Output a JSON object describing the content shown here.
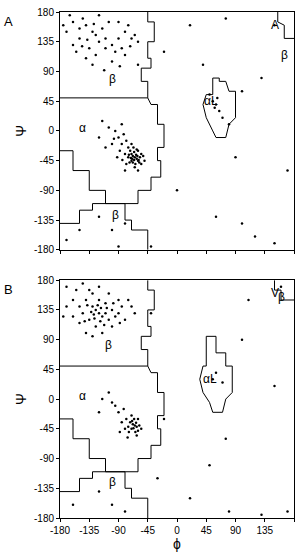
{
  "chart_data": [
    {
      "type": "scatter",
      "panel_label": "A",
      "ylabel": "Ψ",
      "color": "#000000",
      "marker": "circle",
      "line_style": "solid",
      "tick_labels": "y",
      "xlim": [
        -180,
        180
      ],
      "ylim": [
        -180,
        180
      ],
      "xticks": [
        -180,
        -135,
        -90,
        -45,
        0,
        45,
        90,
        135,
        180
      ],
      "yticks": [
        -180,
        -135,
        -90,
        -45,
        0,
        45,
        90,
        135,
        180
      ],
      "annotations": [
        {
          "text": "A",
          "x": 150,
          "y": 160
        },
        {
          "text": "β",
          "x": -100,
          "y": 78
        },
        {
          "text": "α",
          "x": -145,
          "y": 5
        },
        {
          "text": "αL",
          "x": 52,
          "y": 45
        },
        {
          "text": "β",
          "x": -95,
          "y": -128
        },
        {
          "text": "β",
          "x": 165,
          "y": 115
        }
      ],
      "points": [
        [
          -65,
          -40
        ],
        [
          -60,
          -45
        ],
        [
          -70,
          -35
        ],
        [
          -62,
          -42
        ],
        [
          -68,
          -38
        ],
        [
          -58,
          -48
        ],
        [
          -72,
          -30
        ],
        [
          -66,
          -44
        ],
        [
          -63,
          -36
        ],
        [
          -75,
          -40
        ],
        [
          -55,
          -50
        ],
        [
          -60,
          -30
        ],
        [
          -80,
          -35
        ],
        [
          -67,
          -25
        ],
        [
          -64,
          -50
        ],
        [
          -70,
          -45
        ],
        [
          -57,
          -40
        ],
        [
          -61,
          -38
        ],
        [
          -69,
          -42
        ],
        [
          -73,
          -48
        ],
        [
          -85,
          -20
        ],
        [
          -90,
          -10
        ],
        [
          -95,
          0
        ],
        [
          -78,
          -15
        ],
        [
          -88,
          -30
        ],
        [
          -100,
          -20
        ],
        [
          -82,
          -5
        ],
        [
          -70,
          -20
        ],
        [
          -65,
          -55
        ],
        [
          -55,
          -35
        ],
        [
          -50,
          -45
        ],
        [
          -75,
          -25
        ],
        [
          -92,
          -40
        ],
        [
          -105,
          5
        ],
        [
          -115,
          15
        ],
        [
          -85,
          10
        ],
        [
          -60,
          -60
        ],
        [
          -78,
          -50
        ],
        [
          -66,
          -32
        ],
        [
          -62,
          -28
        ],
        [
          -59,
          -44
        ],
        [
          -71,
          -41
        ],
        [
          -68,
          -48
        ],
        [
          -74,
          -36
        ],
        [
          -84,
          -44
        ],
        [
          -97,
          -12
        ],
        [
          -110,
          -25
        ],
        [
          -120,
          -10
        ],
        [
          -52,
          -38
        ],
        [
          -80,
          -60
        ],
        [
          -120,
          135
        ],
        [
          -130,
          150
        ],
        [
          -140,
          160
        ],
        [
          -110,
          125
        ],
        [
          -150,
          140
        ],
        [
          -100,
          130
        ],
        [
          -90,
          140
        ],
        [
          -80,
          150
        ],
        [
          -75,
          160
        ],
        [
          -160,
          165
        ],
        [
          -170,
          150
        ],
        [
          -125,
          115
        ],
        [
          -135,
          125
        ],
        [
          -145,
          170
        ],
        [
          -115,
          155
        ],
        [
          -95,
          120
        ],
        [
          -85,
          125
        ],
        [
          -70,
          140
        ],
        [
          -65,
          145
        ],
        [
          -60,
          135
        ],
        [
          -105,
          165
        ],
        [
          -155,
          120
        ],
        [
          -165,
          175
        ],
        [
          -130,
          100
        ],
        [
          -120,
          175
        ],
        [
          -140,
          110
        ],
        [
          -100,
          105
        ],
        [
          -90,
          165
        ],
        [
          -150,
          155
        ],
        [
          -110,
          140
        ],
        [
          -125,
          145
        ],
        [
          -80,
          115
        ],
        [
          -160,
          130
        ],
        [
          -175,
          160
        ],
        [
          -138,
          138
        ],
        [
          -72,
          128
        ],
        [
          -128,
          162
        ],
        [
          -146,
          128
        ],
        [
          -88,
          98
        ],
        [
          -112,
          92
        ],
        [
          60,
          40
        ],
        [
          55,
          45
        ],
        [
          65,
          30
        ],
        [
          70,
          20
        ],
        [
          58,
          35
        ],
        [
          62,
          50
        ],
        [
          80,
          10
        ],
        [
          50,
          55
        ],
        [
          75,
          170
        ],
        [
          150,
          -170
        ],
        [
          -170,
          -165
        ],
        [
          -90,
          -175
        ],
        [
          -100,
          -150
        ],
        [
          -150,
          -150
        ],
        [
          120,
          -160
        ],
        [
          100,
          -140
        ],
        [
          130,
          80
        ],
        [
          -20,
          120
        ],
        [
          0,
          -90
        ],
        [
          20,
          160
        ],
        [
          -40,
          -175
        ],
        [
          60,
          -130
        ],
        [
          90,
          -40
        ],
        [
          170,
          -60
        ],
        [
          40,
          100
        ],
        [
          100,
          60
        ],
        [
          150,
          160
        ],
        [
          -80,
          -140
        ],
        [
          -120,
          -130
        ],
        [
          -60,
          100
        ]
      ],
      "outlines": [
        {
          "x": [
            -45,
            -45,
            -35,
            -35,
            -45,
            -45,
            -40,
            -40,
            -55,
            -55,
            -45,
            -45
          ],
          "y": [
            180,
            165,
            165,
            135,
            135,
            110,
            110,
            95,
            95,
            75,
            75,
            50
          ]
        },
        {
          "x": [
            -180,
            -45,
            -40,
            -30,
            -30,
            -20,
            -20,
            -30,
            -30,
            -25,
            -25,
            -40,
            -40,
            -60,
            -60,
            -110,
            -110,
            -135,
            -135,
            -160,
            -160,
            -180
          ],
          "y": [
            50,
            50,
            40,
            40,
            10,
            10,
            -25,
            -25,
            -45,
            -45,
            -70,
            -70,
            -90,
            -90,
            -110,
            -110,
            -90,
            -90,
            -60,
            -60,
            -30,
            -30
          ]
        },
        {
          "x": [
            -180,
            -150,
            -150,
            -130,
            -130,
            -80,
            -80,
            -70,
            -70,
            -45,
            -45
          ],
          "y": [
            -140,
            -140,
            -120,
            -120,
            -110,
            -110,
            -135,
            -135,
            -150,
            -150,
            -180
          ]
        },
        {
          "x": [
            55,
            65,
            65,
            75,
            80,
            90,
            90,
            80,
            75,
            60,
            55,
            45,
            40,
            45,
            55,
            55
          ],
          "y": [
            80,
            80,
            75,
            75,
            60,
            60,
            20,
            10,
            -10,
            -10,
            0,
            20,
            40,
            55,
            55,
            80
          ]
        },
        {
          "x": [
            155,
            155,
            165,
            165,
            180
          ],
          "y": [
            180,
            165,
            160,
            140,
            140
          ]
        }
      ]
    },
    {
      "type": "scatter",
      "panel_label": "B",
      "xlabel": "ϕ",
      "ylabel": "Ψ",
      "color": "#000000",
      "marker": "circle",
      "line_style": "solid",
      "xlim": [
        -180,
        180
      ],
      "ylim": [
        -180,
        180
      ],
      "xticks": [
        -180,
        -135,
        -90,
        -45,
        0,
        45,
        90,
        135,
        180
      ],
      "yticks": [
        -180,
        -135,
        -90,
        -45,
        0,
        45,
        90,
        135,
        180
      ],
      "annotations": [
        {
          "text": "V",
          "x": 150,
          "y": 160
        },
        {
          "text": "β",
          "x": -105,
          "y": 82
        },
        {
          "text": "α",
          "x": -145,
          "y": 5
        },
        {
          "text": "αL",
          "x": 50,
          "y": 30
        },
        {
          "text": "β",
          "x": -100,
          "y": -125
        },
        {
          "text": "β",
          "x": 160,
          "y": 155
        }
      ],
      "points": [
        [
          -120,
          130
        ],
        [
          -125,
          135
        ],
        [
          -130,
          140
        ],
        [
          -115,
          125
        ],
        [
          -110,
          130
        ],
        [
          -135,
          120
        ],
        [
          -140,
          150
        ],
        [
          -120,
          150
        ],
        [
          -105,
          120
        ],
        [
          -100,
          135
        ],
        [
          -130,
          160
        ],
        [
          -150,
          140
        ],
        [
          -145,
          130
        ],
        [
          -118,
          118
        ],
        [
          -125,
          110
        ],
        [
          -110,
          145
        ],
        [
          -95,
          125
        ],
        [
          -90,
          130
        ],
        [
          -135,
          165
        ],
        [
          -160,
          150
        ],
        [
          -155,
          165
        ],
        [
          -170,
          170
        ],
        [
          -85,
          140
        ],
        [
          -80,
          120
        ],
        [
          -75,
          150
        ],
        [
          -100,
          110
        ],
        [
          -140,
          100
        ],
        [
          -130,
          95
        ],
        [
          -115,
          100
        ],
        [
          -150,
          115
        ],
        [
          -160,
          125
        ],
        [
          -145,
          175
        ],
        [
          -120,
          170
        ],
        [
          -105,
          160
        ],
        [
          -90,
          150
        ],
        [
          -128,
          128
        ],
        [
          -122,
          142
        ],
        [
          -132,
          132
        ],
        [
          -112,
          112
        ],
        [
          -138,
          142
        ],
        [
          -117,
          138
        ],
        [
          -127,
          122
        ],
        [
          -142,
          118
        ],
        [
          -108,
          138
        ],
        [
          -98,
          145
        ],
        [
          -88,
          115
        ],
        [
          -70,
          140
        ],
        [
          -65,
          130
        ],
        [
          -170,
          140
        ],
        [
          -175,
          125
        ],
        [
          -65,
          -40
        ],
        [
          -62,
          -42
        ],
        [
          -68,
          -38
        ],
        [
          -70,
          -45
        ],
        [
          -60,
          -48
        ],
        [
          -72,
          -35
        ],
        [
          -66,
          -30
        ],
        [
          -58,
          -40
        ],
        [
          -75,
          -42
        ],
        [
          -64,
          -50
        ],
        [
          -78,
          -30
        ],
        [
          -80,
          -45
        ],
        [
          -85,
          -35
        ],
        [
          -90,
          -20
        ],
        [
          -95,
          -10
        ],
        [
          -100,
          -5
        ],
        [
          -70,
          -25
        ],
        [
          -62,
          -55
        ],
        [
          -55,
          -45
        ],
        [
          -74,
          -50
        ],
        [
          -67,
          -44
        ],
        [
          -63,
          -36
        ],
        [
          -69,
          -33
        ],
        [
          -82,
          -15
        ],
        [
          -105,
          10
        ],
        [
          -115,
          0
        ],
        [
          -88,
          -50
        ],
        [
          -76,
          -58
        ],
        [
          -120,
          -20
        ],
        [
          -60,
          -30
        ],
        [
          60,
          40
        ],
        [
          55,
          30
        ],
        [
          70,
          25
        ],
        [
          160,
          170
        ],
        [
          170,
          -170
        ],
        [
          -160,
          -160
        ],
        [
          -120,
          -140
        ],
        [
          -100,
          -160
        ],
        [
          -80,
          -170
        ],
        [
          80,
          -170
        ],
        [
          130,
          -175
        ],
        [
          100,
          90
        ],
        [
          -30,
          -120
        ],
        [
          50,
          -100
        ],
        [
          150,
          20
        ],
        [
          -40,
          130
        ],
        [
          -20,
          -30
        ],
        [
          75,
          -60
        ],
        [
          20,
          -150
        ],
        [
          110,
          150
        ]
      ],
      "outlines": [
        {
          "x": [
            -45,
            -45,
            -35,
            -35,
            -45,
            -45,
            -40,
            -40,
            -55,
            -55,
            -45,
            -45
          ],
          "y": [
            180,
            165,
            165,
            135,
            135,
            110,
            110,
            95,
            95,
            75,
            75,
            50
          ]
        },
        {
          "x": [
            -180,
            -45,
            -40,
            -30,
            -30,
            -20,
            -20,
            -30,
            -30,
            -25,
            -25,
            -40,
            -40,
            -60,
            -60,
            -110,
            -110,
            -135,
            -135,
            -160,
            -160,
            -180
          ],
          "y": [
            50,
            50,
            40,
            40,
            10,
            10,
            -25,
            -25,
            -45,
            -45,
            -70,
            -70,
            -90,
            -90,
            -110,
            -110,
            -90,
            -90,
            -60,
            -60,
            -30,
            -30
          ]
        },
        {
          "x": [
            -180,
            -150,
            -150,
            -130,
            -130,
            -80,
            -80,
            -70,
            -70,
            -45,
            -45
          ],
          "y": [
            -140,
            -140,
            -120,
            -120,
            -110,
            -110,
            -135,
            -135,
            -150,
            -150,
            -180
          ]
        },
        {
          "x": [
            45,
            60,
            60,
            75,
            75,
            85,
            85,
            75,
            70,
            55,
            50,
            40,
            35,
            40,
            45,
            45
          ],
          "y": [
            95,
            95,
            70,
            70,
            50,
            50,
            10,
            0,
            -20,
            -20,
            -5,
            10,
            30,
            50,
            50,
            95
          ]
        },
        {
          "x": [
            150,
            150,
            160,
            160,
            180
          ],
          "y": [
            180,
            165,
            165,
            150,
            150
          ]
        }
      ]
    }
  ]
}
